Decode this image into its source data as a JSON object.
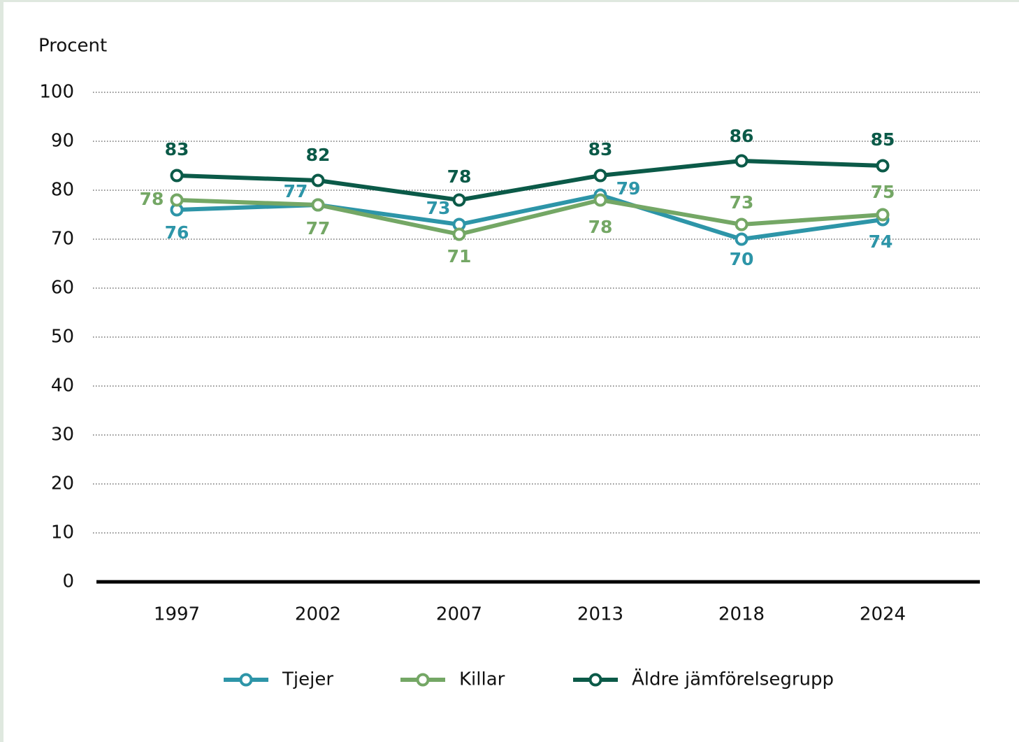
{
  "chart_data": {
    "type": "line",
    "ylabel": "Procent",
    "categories": [
      "1997",
      "2002",
      "2007",
      "2013",
      "2018",
      "2024"
    ],
    "series": [
      {
        "name": "Tjejer",
        "color": "#2d95a8",
        "values": [
          76,
          77,
          73,
          79,
          70,
          74
        ]
      },
      {
        "name": "Killar",
        "color": "#74a765",
        "values": [
          78,
          77,
          71,
          78,
          73,
          75
        ]
      },
      {
        "name": "Äldre jämförelsegrupp",
        "color": "#0b5a48",
        "values": [
          83,
          82,
          78,
          83,
          86,
          85
        ]
      }
    ],
    "ylim": [
      0,
      100
    ],
    "yticks": [
      0,
      10,
      20,
      30,
      40,
      50,
      60,
      70,
      80,
      90,
      100
    ],
    "grid": true,
    "legend": "bottom"
  }
}
